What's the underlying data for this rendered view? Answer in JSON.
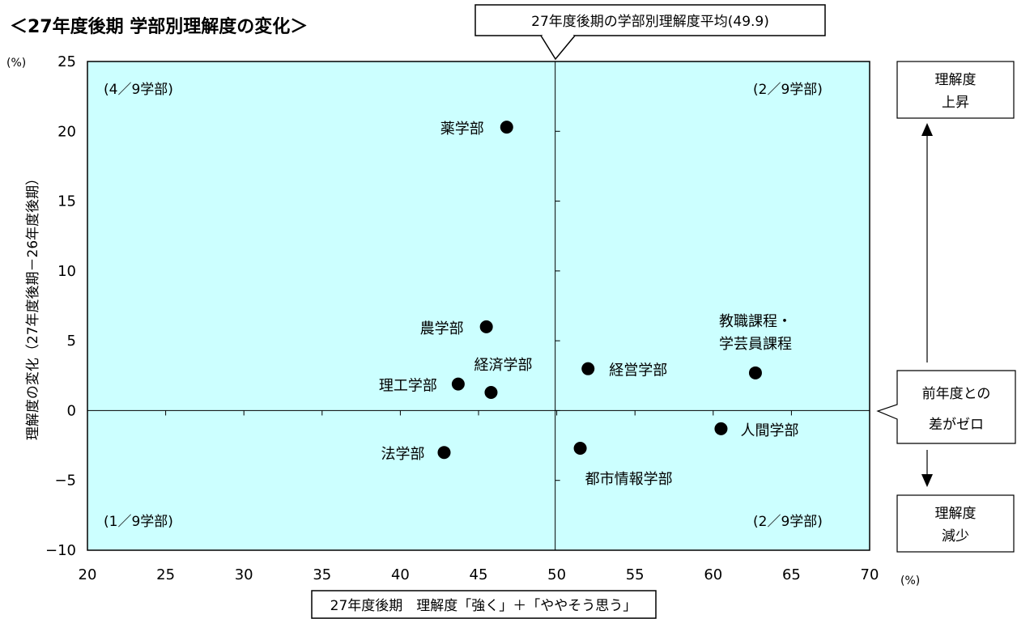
{
  "chart_data": {
    "type": "scatter",
    "title": "＜27年度後期 学部別理解度の変化＞",
    "xlabel": "27年度後期　理解度「強く」＋「ややそう思う」",
    "ylabel": "理解度の変化（27年度後期－26年度後期）",
    "x_unit": "(%)",
    "y_unit": "(%)",
    "xlim": [
      20,
      70
    ],
    "ylim": [
      -10,
      25
    ],
    "x_ticks": [
      20,
      25,
      30,
      35,
      40,
      45,
      50,
      55,
      60,
      65,
      70
    ],
    "y_ticks": [
      -10,
      -5,
      0,
      5,
      10,
      15,
      20,
      25
    ],
    "x_tick_labels": [
      "20",
      "25",
      "30",
      "35",
      "40",
      "45",
      "50",
      "55",
      "60",
      "65",
      "70"
    ],
    "y_tick_labels": [
      "−10",
      "−5",
      "0",
      "5",
      "10",
      "15",
      "20",
      "25"
    ],
    "points": [
      {
        "label": "薬学部",
        "x": 46.8,
        "y": 20.3
      },
      {
        "label": "農学部",
        "x": 45.5,
        "y": 6.0
      },
      {
        "label": "経済学部",
        "x": 45.8,
        "y": 1.3
      },
      {
        "label": "理工学部",
        "x": 43.7,
        "y": 1.9
      },
      {
        "label": "法学部",
        "x": 42.8,
        "y": -3.0
      },
      {
        "label": "経営学部",
        "x": 52.0,
        "y": 3.0
      },
      {
        "label": "教職課程・\n学芸員課程",
        "x": 62.7,
        "y": 2.7
      },
      {
        "label": "人間学部",
        "x": 60.5,
        "y": -1.3
      },
      {
        "label": "都市情報学部",
        "x": 51.5,
        "y": -2.7
      }
    ],
    "reference_lines": {
      "x": 49.9,
      "y": 0
    },
    "plot_background": "#ccffff",
    "point_color": "#000000"
  },
  "annotations": {
    "avg_callout": "27年度後期の学部別理解度平均(49.9)",
    "quad_top_left": "(4／9学部)",
    "quad_top_right": "(2／9学部)",
    "quad_bottom_left": "(1／9学部)",
    "quad_bottom_right": "(2／9学部)",
    "up_box_line1": "理解度",
    "up_box_line2": "上昇",
    "zero_callout_line1": "前年度との",
    "zero_callout_line2": "差がゼロ",
    "down_box_line1": "理解度",
    "down_box_line2": "減少"
  }
}
